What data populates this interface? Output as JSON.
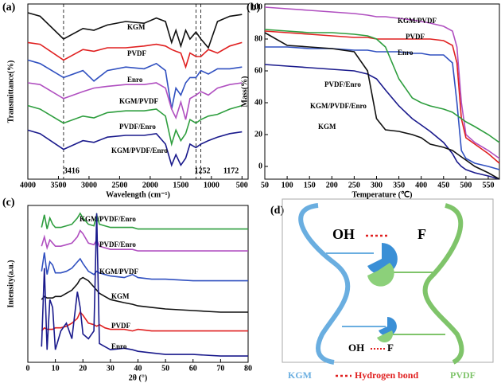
{
  "chart_data": [
    {
      "type": "line",
      "label": "(a)",
      "xlabel": "Wavelength (cm⁻¹)",
      "ylabel": "Transmittance(%)",
      "xlim": [
        4000,
        400
      ],
      "xticks": [
        4000,
        3500,
        3000,
        2500,
        2000,
        1500,
        1000,
        500
      ],
      "ylim": [
        0,
        100
      ],
      "x": [
        4000,
        3800,
        3416,
        3100,
        2920,
        2700,
        2400,
        2100,
        1900,
        1750,
        1650,
        1580,
        1500,
        1420,
        1350,
        1252,
        1172,
        1050,
        900,
        700,
        500
      ],
      "series": [
        {
          "name": "KGM",
          "color": "#111111",
          "values": [
            95,
            93,
            80,
            86,
            85,
            88,
            90,
            89,
            92,
            90,
            78,
            85,
            76,
            85,
            80,
            84,
            80,
            75,
            90,
            93,
            94
          ]
        },
        {
          "name": "PVDF",
          "color": "#e02020",
          "values": [
            78,
            77,
            68,
            74,
            73,
            75,
            75,
            76,
            77,
            76,
            74,
            73,
            72,
            64,
            72,
            70,
            70,
            74,
            72,
            76,
            78
          ]
        },
        {
          "name": "Enro",
          "color": "#3050c0",
          "values": [
            68,
            66,
            58,
            62,
            56,
            62,
            64,
            63,
            66,
            62,
            40,
            52,
            48,
            55,
            58,
            58,
            62,
            60,
            63,
            63,
            64
          ]
        },
        {
          "name": "KGM/PVDF",
          "color": "#b04fc0",
          "values": [
            55,
            54,
            46,
            50,
            52,
            53,
            54,
            54,
            55,
            52,
            40,
            35,
            44,
            34,
            46,
            48,
            50,
            48,
            52,
            54,
            55
          ]
        },
        {
          "name": "PVDF/Enro",
          "color": "#2e9e3e",
          "values": [
            42,
            40,
            32,
            36,
            35,
            38,
            39,
            39,
            40,
            36,
            20,
            28,
            22,
            26,
            34,
            32,
            34,
            36,
            37,
            40,
            42
          ]
        },
        {
          "name": "KGM/PVDF/Enro",
          "color": "#1a1a8c",
          "values": [
            28,
            26,
            17,
            22,
            21,
            24,
            25,
            25,
            26,
            20,
            8,
            14,
            8,
            12,
            20,
            18,
            20,
            22,
            24,
            26,
            27
          ]
        }
      ],
      "annotations": [
        {
          "text": "3416",
          "x": 3416
        },
        {
          "text": "1252",
          "x": 1252
        },
        {
          "text": "1172",
          "x": 1172
        }
      ]
    },
    {
      "type": "line",
      "label": "(b)",
      "xlabel": "Temperature (℃)",
      "ylabel": "Mass(%)",
      "xlim": [
        50,
        575
      ],
      "xticks": [
        50,
        100,
        150,
        200,
        250,
        300,
        350,
        400,
        450,
        500,
        550
      ],
      "ylim": [
        -8,
        102
      ],
      "yticks": [
        0,
        20,
        40,
        60,
        80,
        100
      ],
      "x": [
        50,
        100,
        150,
        200,
        250,
        280,
        300,
        320,
        350,
        380,
        400,
        420,
        450,
        470,
        480,
        490,
        500,
        520,
        550,
        575
      ],
      "series": [
        {
          "name": "KGM/PVDF",
          "color": "#b04fc0",
          "values": [
            100,
            99,
            98,
            97,
            96,
            95,
            94,
            94,
            93,
            92,
            91,
            90,
            88,
            85,
            75,
            40,
            20,
            15,
            10,
            5
          ]
        },
        {
          "name": "PVDF",
          "color": "#e02020",
          "values": [
            85,
            84,
            83,
            82,
            81,
            81,
            80,
            80,
            80,
            80,
            80,
            80,
            79,
            76,
            65,
            30,
            18,
            14,
            8,
            2
          ]
        },
        {
          "name": "Enro",
          "color": "#3050c0",
          "values": [
            75,
            75,
            74,
            74,
            73,
            73,
            72,
            72,
            72,
            71,
            71,
            70,
            70,
            65,
            40,
            10,
            5,
            2,
            0,
            -2
          ]
        },
        {
          "name": "PVDF/Enro",
          "color": "#2e9e3e",
          "values": [
            86,
            85,
            84,
            84,
            83,
            82,
            80,
            75,
            55,
            43,
            40,
            38,
            36,
            34,
            32,
            30,
            28,
            25,
            20,
            15
          ]
        },
        {
          "name": "KGM/PVDF/Enro",
          "color": "#1a1a8c",
          "values": [
            64,
            63,
            62,
            61,
            60,
            58,
            55,
            48,
            38,
            30,
            26,
            22,
            15,
            8,
            3,
            0,
            -2,
            -4,
            -6,
            -8
          ]
        },
        {
          "name": "KGM",
          "color": "#111111",
          "values": [
            84,
            76,
            75,
            74,
            72,
            60,
            30,
            23,
            22,
            20,
            18,
            14,
            12,
            10,
            8,
            6,
            4,
            0,
            -4,
            -8
          ]
        }
      ]
    },
    {
      "type": "line",
      "label": "(c)",
      "xlabel": "2θ (°)",
      "ylabel": "Intensity(a.u.)",
      "xlim": [
        0,
        80
      ],
      "xticks": [
        0,
        10,
        20,
        30,
        40,
        50,
        60,
        70,
        80
      ],
      "ylim": [
        0,
        100
      ],
      "x": [
        5,
        6,
        7,
        8,
        9,
        10,
        12,
        14,
        16,
        18,
        19,
        20,
        22,
        24,
        25,
        26,
        28,
        30,
        35,
        38,
        40,
        45,
        50,
        60,
        70,
        80
      ],
      "series": [
        {
          "name": "KGM/PVDF/Enro",
          "color": "#2e9e3e",
          "values": [
            86,
            94,
            85,
            92,
            88,
            86,
            86,
            87,
            88,
            92,
            95,
            92,
            88,
            87,
            94,
            88,
            87,
            86,
            86,
            86,
            85,
            85,
            85,
            85,
            85,
            85
          ]
        },
        {
          "name": "PVDF/Enro",
          "color": "#b04fc0",
          "values": [
            74,
            80,
            73,
            78,
            76,
            74,
            74,
            75,
            76,
            80,
            84,
            82,
            76,
            75,
            78,
            74,
            73,
            72,
            72,
            72,
            71,
            71,
            71,
            71,
            71,
            71
          ]
        },
        {
          "name": "KGM/PVDF",
          "color": "#3050c0",
          "values": [
            58,
            70,
            56,
            64,
            62,
            57,
            57,
            58,
            60,
            64,
            66,
            63,
            58,
            56,
            58,
            57,
            56,
            55,
            54,
            56,
            54,
            53,
            53,
            52,
            52,
            52
          ]
        },
        {
          "name": "KGM",
          "color": "#111111",
          "values": [
            40,
            42,
            41,
            41,
            41,
            42,
            42,
            44,
            46,
            50,
            53,
            54,
            52,
            48,
            46,
            44,
            42,
            40,
            38,
            37,
            36,
            35,
            34,
            33,
            32,
            32
          ]
        },
        {
          "name": "PVDF",
          "color": "#e02020",
          "values": [
            20,
            22,
            21,
            21,
            21,
            22,
            22,
            23,
            25,
            28,
            32,
            30,
            25,
            24,
            23,
            24,
            22,
            21,
            21,
            20,
            21,
            20,
            20,
            20,
            20,
            20
          ]
        },
        {
          "name": "Enro",
          "color": "#1a1a8c",
          "values": [
            10,
            60,
            8,
            40,
            35,
            8,
            20,
            25,
            15,
            45,
            35,
            18,
            15,
            20,
            95,
            12,
            10,
            8,
            9,
            8,
            7,
            6,
            5,
            5,
            4,
            4
          ]
        }
      ]
    }
  ],
  "diagram": {
    "label": "(d)",
    "top_donor": "OH",
    "top_acceptor": "F",
    "bottom_donor": "OH",
    "bottom_acceptor": "F",
    "legend": [
      "KGM",
      "Hydrogen bond",
      "PVDF"
    ]
  }
}
